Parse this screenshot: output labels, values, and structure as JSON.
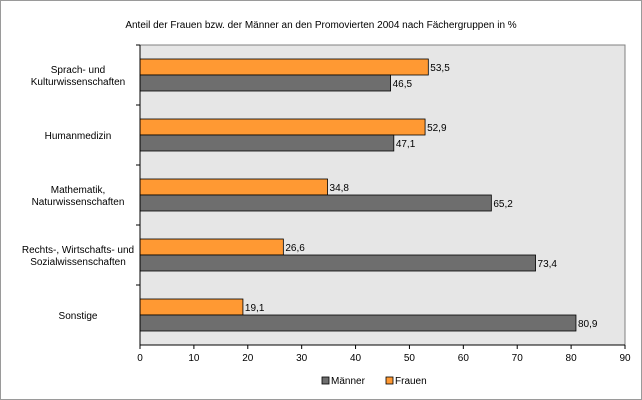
{
  "chart_data": {
    "type": "bar",
    "orientation": "horizontal",
    "title": "Anteil der Frauen bzw. der Männer an den Promovierten 2004 nach Fächergruppen in %",
    "categories": [
      [
        "Sprach- und",
        "Kulturwissenschaften"
      ],
      [
        "Humanmedizin"
      ],
      [
        "Mathematik,",
        "Naturwissenschaften"
      ],
      [
        "Rechts-, Wirtschafts- und",
        "Sozialwissenschaften"
      ],
      [
        "Sonstige"
      ]
    ],
    "series": [
      {
        "name": "Frauen",
        "color": "#ff9933",
        "values": [
          53.5,
          52.9,
          34.8,
          26.6,
          19.1
        ],
        "labels": [
          "53,5",
          "52,9",
          "34,8",
          "26,6",
          "19,1"
        ]
      },
      {
        "name": "Männer",
        "color": "#6e6e6e",
        "values": [
          46.5,
          47.1,
          65.2,
          73.4,
          80.9
        ],
        "labels": [
          "46,5",
          "47,1",
          "65,2",
          "73,4",
          "80,9"
        ]
      }
    ],
    "xlim": [
      0,
      90
    ],
    "xticks": [
      0,
      10,
      20,
      30,
      40,
      50,
      60,
      70,
      80,
      90
    ],
    "plot_background": "#e6e6e6",
    "grid": false,
    "legend": {
      "position": "bottom",
      "entries": [
        "Männer",
        "Frauen"
      ]
    }
  }
}
